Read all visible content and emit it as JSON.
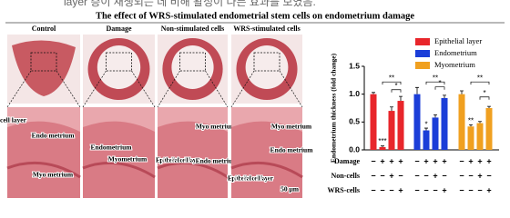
{
  "caption_fragment": "layer 층이 재생되는 데 비해 활성이 다른 효과를 보였음.",
  "title": "The effect of WRS-stimulated endometrial stem cells on endometrium damage",
  "panels": [
    {
      "label": "Control",
      "annotations": [
        "cell layer",
        "Endo metrium",
        "Myo metrium"
      ]
    },
    {
      "label": "Damage",
      "annotations": [
        "Endometrium",
        "Myometrium"
      ]
    },
    {
      "label": "Non-stimulated cells",
      "annotations": [
        "Myo metrium",
        "Epithelial cell layer",
        "Endo metrium"
      ]
    },
    {
      "label": "WRS-stimulated cells",
      "annotations": [
        "Myo metrium",
        "Epithelial cell layer",
        "Endo metrium",
        "50 μm"
      ]
    }
  ],
  "chart_data": {
    "type": "bar",
    "ylabel": "Endometrium thickness (fold change)",
    "ylim": [
      0,
      1.5
    ],
    "yticks": [
      {
        "value": 0,
        "label": "0.0"
      },
      {
        "value": 0.5,
        "label": "0.5"
      },
      {
        "value": 1,
        "label": "1.0"
      },
      {
        "value": 1.5,
        "label": "1.5"
      }
    ],
    "legend": "top-right",
    "series": [
      {
        "name": "Epithelial layer",
        "color": "#e8262b",
        "values": [
          1.0,
          0.05,
          0.7,
          0.88
        ],
        "errors": [
          0.03,
          0.02,
          0.07,
          0.08
        ],
        "annotations": [
          "***",
          "**",
          "*"
        ]
      },
      {
        "name": "Endometrium",
        "color": "#1b3ed8",
        "values": [
          1.0,
          0.35,
          0.58,
          0.93
        ],
        "errors": [
          0.12,
          0.04,
          0.05,
          0.05
        ],
        "annotations": [
          "*",
          "**",
          "*"
        ]
      },
      {
        "name": "Myometrium",
        "color": "#f0a020",
        "values": [
          1.0,
          0.42,
          0.48,
          0.75
        ],
        "errors": [
          0.06,
          0.03,
          0.03,
          0.03
        ],
        "annotations": [
          "**",
          "**",
          "*"
        ]
      }
    ],
    "treatments": [
      {
        "name": "Damage",
        "signs": [
          "−",
          "+",
          "+",
          "+"
        ]
      },
      {
        "name": "Non-cells",
        "signs": [
          "−",
          "−",
          "+",
          "−"
        ]
      },
      {
        "name": "WRS-cells",
        "signs": [
          "−",
          "−",
          "−",
          "+"
        ]
      }
    ]
  }
}
